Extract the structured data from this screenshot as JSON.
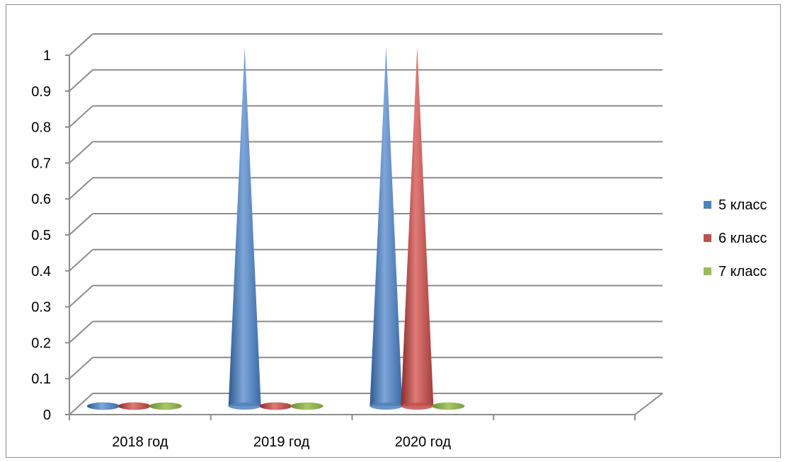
{
  "chart_data": {
    "type": "bar",
    "style": "3d-cone",
    "categories": [
      "2018 год",
      "2019 год",
      "2020 год",
      ""
    ],
    "series": [
      {
        "name": "5 класс",
        "values": [
          0,
          1,
          1,
          null
        ],
        "color": "#4f81bd"
      },
      {
        "name": "6 класс",
        "values": [
          0,
          0,
          1,
          null
        ],
        "color": "#c0504d"
      },
      {
        "name": "7 класс",
        "values": [
          0,
          0,
          0,
          null
        ],
        "color": "#9bbb59"
      }
    ],
    "yticks": [
      "0",
      "0.1",
      "0.2",
      "0.3",
      "0.4",
      "0.5",
      "0.6",
      "0.7",
      "0.8",
      "0.9",
      "1"
    ],
    "ylim": [
      0,
      1
    ],
    "grid": true,
    "legend": "right"
  }
}
